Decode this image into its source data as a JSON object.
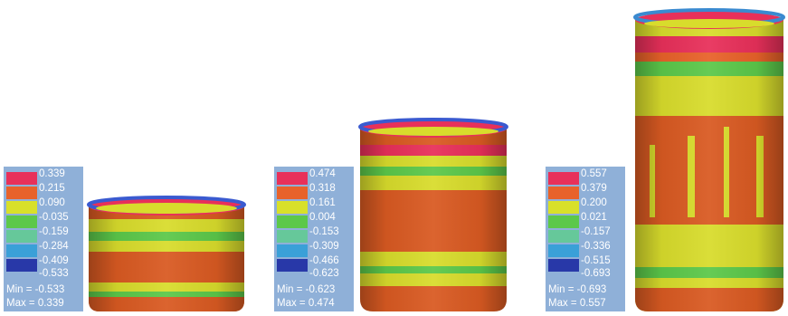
{
  "scale_colors": [
    "#e8305a",
    "#e8622a",
    "#d8e02a",
    "#5cc84a",
    "#66c89a",
    "#3aa0d8",
    "#2838a8"
  ],
  "cylinder_colors": {
    "body_main": "#d95a22",
    "body_dark": "#b84414",
    "band_yellow": "#d8dc2c",
    "band_green": "#5cc84a",
    "rim_blue": "#3a5ad0",
    "rim_red": "#e8305a"
  },
  "legends": [
    {
      "values": [
        "0.339",
        "0.215",
        "0.090",
        "-0.035",
        "-0.159",
        "-0.284",
        "-0.409",
        "-0.533"
      ],
      "min_label": "Min = -0.533",
      "max_label": "Max =  0.339"
    },
    {
      "values": [
        "0.474",
        "0.318",
        "0.161",
        "0.004",
        "-0.153",
        "-0.309",
        "-0.466",
        "-0.623"
      ],
      "min_label": "Min = -0.623",
      "max_label": "Max =  0.474"
    },
    {
      "values": [
        "0.557",
        "0.379",
        "0.200",
        "0.021",
        "-0.157",
        "-0.336",
        "-0.515",
        "-0.693"
      ],
      "min_label": "Min = -0.693",
      "max_label": "Max =  0.557"
    }
  ]
}
